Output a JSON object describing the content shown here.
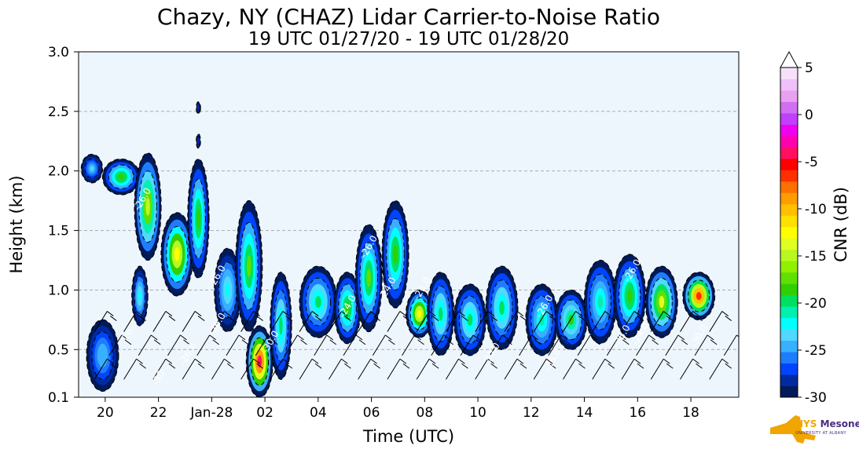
{
  "header": {
    "title": "Chazy, NY (CHAZ) Lidar Carrier-to-Noise Ratio",
    "subtitle": "19 UTC 01/27/20 - 19 UTC 01/28/20"
  },
  "logo": {
    "brand_nys": "NYS",
    "brand_mesonet": "Mesonet",
    "tagline": "UNIVERSITY AT ALBANY"
  },
  "chart_data": {
    "type": "heatmap",
    "title": "Chazy, NY (CHAZ) Lidar Carrier-to-Noise Ratio",
    "subtitle": "19 UTC 01/27/20 - 19 UTC 01/28/20",
    "xlabel": "Time (UTC)",
    "ylabel": "Height (km)",
    "xlim": [
      19,
      43.8
    ],
    "ylim": [
      0.1,
      3.0
    ],
    "x_ticks": [
      {
        "value": 20,
        "label": "20"
      },
      {
        "value": 22,
        "label": "22"
      },
      {
        "value": 24,
        "label": "Jan-28"
      },
      {
        "value": 26,
        "label": "02"
      },
      {
        "value": 28,
        "label": "04"
      },
      {
        "value": 30,
        "label": "06"
      },
      {
        "value": 32,
        "label": "08"
      },
      {
        "value": 34,
        "label": "10"
      },
      {
        "value": 36,
        "label": "12"
      },
      {
        "value": 38,
        "label": "14"
      },
      {
        "value": 40,
        "label": "16"
      },
      {
        "value": 42,
        "label": "18"
      }
    ],
    "y_ticks": [
      {
        "value": 0.1,
        "label": "0.1"
      },
      {
        "value": 0.5,
        "label": "0.5"
      },
      {
        "value": 1.0,
        "label": "1.0"
      },
      {
        "value": 1.5,
        "label": "1.5"
      },
      {
        "value": 2.0,
        "label": "2.0"
      },
      {
        "value": 2.5,
        "label": "2.5"
      },
      {
        "value": 3.0,
        "label": "3.0"
      }
    ],
    "gridlines_y": [
      0.5,
      1.0,
      1.5,
      2.0,
      2.5
    ],
    "background_color": "#eef6fd",
    "colorbar": {
      "label": "CNR (dB)",
      "min": -30,
      "max": 5,
      "ticks": [
        {
          "value": 5,
          "label": "5"
        },
        {
          "value": 0,
          "label": "0"
        },
        {
          "value": -5,
          "label": "-5"
        },
        {
          "value": -10,
          "label": "-10"
        },
        {
          "value": -15,
          "label": "-15"
        },
        {
          "value": -20,
          "label": "-20"
        },
        {
          "value": -25,
          "label": "-25"
        },
        {
          "value": -30,
          "label": "-30"
        }
      ],
      "colors": [
        "#001a5a",
        "#002aa0",
        "#0044ff",
        "#1e7dff",
        "#38b0ff",
        "#50d8ff",
        "#00ffff",
        "#00f0b0",
        "#00e060",
        "#30d000",
        "#60e000",
        "#90f000",
        "#b8f820",
        "#e0ff20",
        "#ffff00",
        "#ffe000",
        "#ffc000",
        "#ff9c00",
        "#ff7000",
        "#ff3000",
        "#ff0000",
        "#ff1060",
        "#ff00b0",
        "#f000f0",
        "#c040ff",
        "#d070f0",
        "#e8a0f0",
        "#f0c0f8",
        "#f8e0fc"
      ]
    },
    "cloud_regions": [
      {
        "cx": 19.5,
        "cy": 2.02,
        "rx": 0.4,
        "ry": 0.12,
        "peak": -23
      },
      {
        "cx": 20.6,
        "cy": 1.95,
        "rx": 0.7,
        "ry": 0.15,
        "peak": -18
      },
      {
        "cx": 21.6,
        "cy": 1.7,
        "rx": 0.5,
        "ry": 0.45,
        "peak": -15
      },
      {
        "cx": 22.7,
        "cy": 1.3,
        "rx": 0.6,
        "ry": 0.35,
        "peak": -12
      },
      {
        "cx": 23.5,
        "cy": 1.6,
        "rx": 0.4,
        "ry": 0.5,
        "peak": -18
      },
      {
        "cx": 23.5,
        "cy": 2.53,
        "rx": 0.08,
        "ry": 0.05,
        "peak": -28
      },
      {
        "cx": 23.5,
        "cy": 2.25,
        "rx": 0.08,
        "ry": 0.06,
        "peak": -28
      },
      {
        "cx": 24.6,
        "cy": 1.0,
        "rx": 0.5,
        "ry": 0.35,
        "peak": -22
      },
      {
        "cx": 25.4,
        "cy": 1.2,
        "rx": 0.5,
        "ry": 0.55,
        "peak": -17
      },
      {
        "cx": 25.8,
        "cy": 0.4,
        "rx": 0.5,
        "ry": 0.3,
        "peak": -4
      },
      {
        "cx": 26.6,
        "cy": 0.7,
        "rx": 0.4,
        "ry": 0.45,
        "peak": -20
      },
      {
        "cx": 28.0,
        "cy": 0.9,
        "rx": 0.7,
        "ry": 0.3,
        "peak": -20
      },
      {
        "cx": 29.1,
        "cy": 0.85,
        "rx": 0.5,
        "ry": 0.3,
        "peak": -18
      },
      {
        "cx": 29.9,
        "cy": 1.1,
        "rx": 0.5,
        "ry": 0.45,
        "peak": -17
      },
      {
        "cx": 30.9,
        "cy": 1.3,
        "rx": 0.5,
        "ry": 0.45,
        "peak": -18
      },
      {
        "cx": 31.8,
        "cy": 0.8,
        "rx": 0.5,
        "ry": 0.2,
        "peak": -12
      },
      {
        "cx": 32.6,
        "cy": 0.8,
        "rx": 0.5,
        "ry": 0.35,
        "peak": -20
      },
      {
        "cx": 33.7,
        "cy": 0.75,
        "rx": 0.6,
        "ry": 0.3,
        "peak": -20
      },
      {
        "cx": 34.9,
        "cy": 0.85,
        "rx": 0.6,
        "ry": 0.35,
        "peak": -20
      },
      {
        "cx": 36.4,
        "cy": 0.75,
        "rx": 0.6,
        "ry": 0.3,
        "peak": -21
      },
      {
        "cx": 37.5,
        "cy": 0.75,
        "rx": 0.6,
        "ry": 0.25,
        "peak": -19
      },
      {
        "cx": 38.6,
        "cy": 0.9,
        "rx": 0.6,
        "ry": 0.35,
        "peak": -21
      },
      {
        "cx": 39.7,
        "cy": 0.95,
        "rx": 0.6,
        "ry": 0.35,
        "peak": -18
      },
      {
        "cx": 40.9,
        "cy": 0.9,
        "rx": 0.6,
        "ry": 0.3,
        "peak": -14
      },
      {
        "cx": 42.3,
        "cy": 0.95,
        "rx": 0.6,
        "ry": 0.2,
        "peak": -6
      },
      {
        "cx": 19.9,
        "cy": 0.45,
        "rx": 0.6,
        "ry": 0.3,
        "peak": -24
      },
      {
        "cx": 21.3,
        "cy": 0.95,
        "rx": 0.3,
        "ry": 0.25,
        "peak": -22
      }
    ],
    "contour_labels": [
      {
        "x": 21.5,
        "y": 1.75,
        "text": "-26.0"
      },
      {
        "x": 24.3,
        "y": 1.1,
        "text": "-26.0"
      },
      {
        "x": 24.3,
        "y": 0.7,
        "text": "-26.0"
      },
      {
        "x": 23.2,
        "y": 0.45,
        "text": "-26.0"
      },
      {
        "x": 26.3,
        "y": 0.55,
        "text": "-30.0"
      },
      {
        "x": 29.2,
        "y": 0.85,
        "text": "-24.0"
      },
      {
        "x": 30.7,
        "y": 1.0,
        "text": "-24.0"
      },
      {
        "x": 30.0,
        "y": 1.35,
        "text": "-26.0"
      },
      {
        "x": 32.0,
        "y": 1.0,
        "text": "-26.0"
      },
      {
        "x": 34.6,
        "y": 0.45,
        "text": "-30.0"
      },
      {
        "x": 36.6,
        "y": 0.85,
        "text": "-26.0"
      },
      {
        "x": 36.9,
        "y": 0.4,
        "text": "-26.0"
      },
      {
        "x": 39.5,
        "y": 0.6,
        "text": "-26.0"
      },
      {
        "x": 39.9,
        "y": 1.15,
        "text": "-26.0"
      },
      {
        "x": 40.2,
        "y": 0.62,
        "text": "-24.0"
      },
      {
        "x": 42.4,
        "y": 0.6,
        "text": "-30.0"
      },
      {
        "x": 20.9,
        "y": 0.6,
        "text": "-26"
      },
      {
        "x": 22.1,
        "y": 0.25,
        "text": "-30"
      }
    ]
  }
}
